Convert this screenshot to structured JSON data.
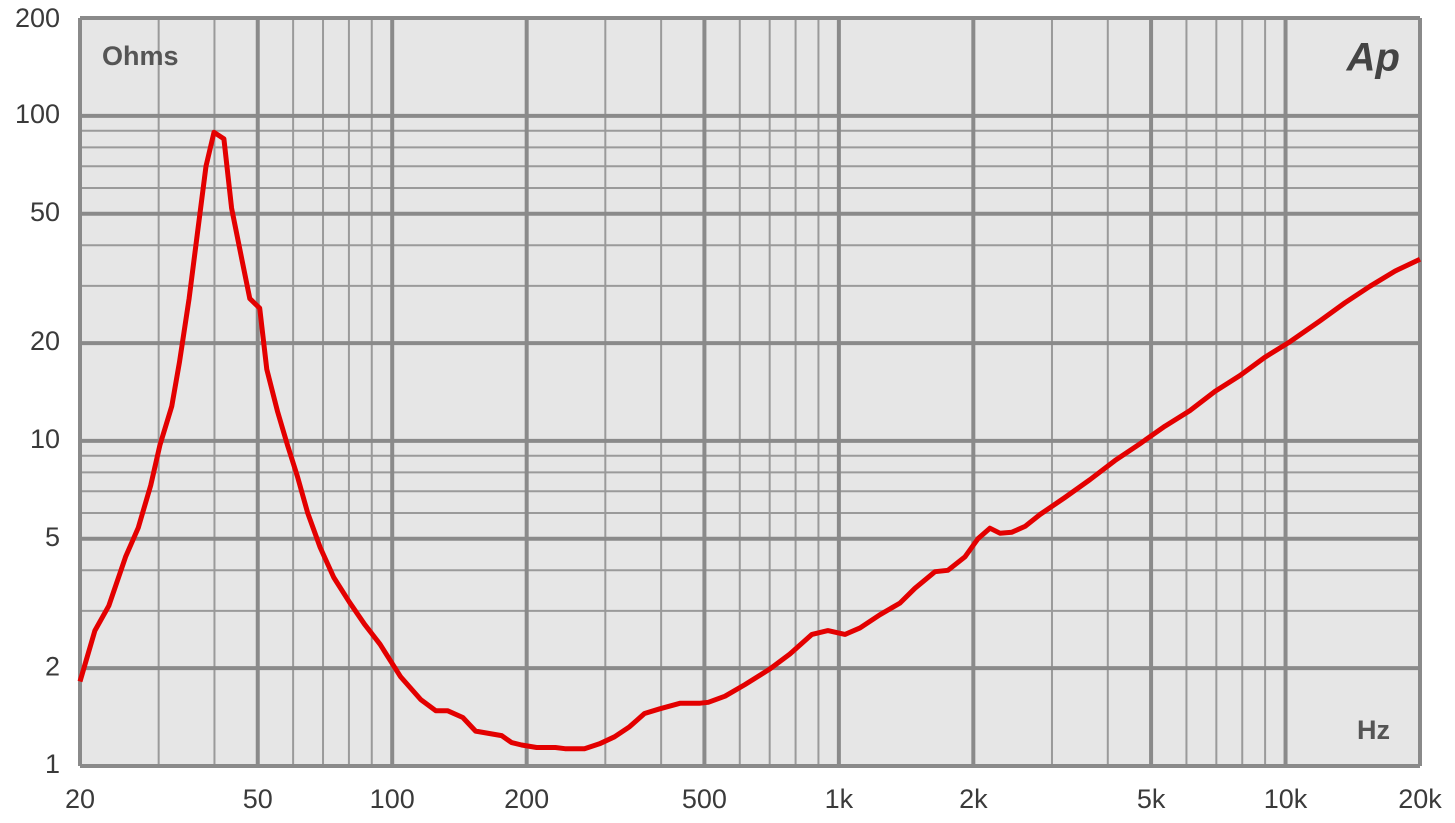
{
  "chart_data": {
    "type": "line",
    "y_label": "Ohms",
    "x_label": "Hz",
    "logo": "Ap",
    "x": [
      20,
      21.6,
      23.2,
      25.3,
      27.0,
      28.8,
      30.2,
      32.1,
      33.4,
      35.1,
      36.6,
      38.3,
      39.9,
      42.0,
      43.7,
      46.1,
      48.0,
      50.5,
      52.4,
      55.4,
      58.3,
      61.3,
      64.7,
      69.0,
      74.0,
      80.1,
      86.7,
      93.9,
      104.5,
      115.9,
      125.2,
      133,
      143.9,
      153.7,
      175.8,
      185.1,
      194.8,
      210.5,
      231.9,
      243.7,
      269.4,
      291.2,
      314.5,
      339.9,
      367.2,
      397.2,
      441.5,
      489,
      510,
      556,
      616,
      701,
      777,
      870,
      945,
      1032,
      1115,
      1236,
      1370,
      1480,
      1641,
      1754,
      1916,
      2048,
      2178,
      2294,
      2440,
      2610,
      2820,
      3207,
      3648,
      4150,
      4721,
      5370,
      6109,
      6950,
      7906,
      8994,
      10232,
      11940,
      13580,
      15450,
      17580,
      20000
    ],
    "values": [
      1.82,
      2.61,
      3.11,
      4.4,
      5.4,
      7.3,
      9.7,
      12.8,
      17.5,
      27.4,
      43,
      70,
      89,
      85,
      52,
      36,
      27.4,
      25.6,
      16.6,
      12.3,
      9.7,
      7.8,
      6.0,
      4.7,
      3.8,
      3.2,
      2.73,
      2.37,
      1.88,
      1.6,
      1.48,
      1.48,
      1.41,
      1.28,
      1.24,
      1.18,
      1.16,
      1.14,
      1.14,
      1.13,
      1.13,
      1.17,
      1.23,
      1.32,
      1.45,
      1.5,
      1.56,
      1.56,
      1.57,
      1.64,
      1.78,
      1.99,
      2.21,
      2.54,
      2.61,
      2.54,
      2.66,
      2.92,
      3.17,
      3.52,
      3.96,
      4.0,
      4.4,
      5.0,
      5.39,
      5.2,
      5.24,
      5.46,
      5.94,
      6.7,
      7.6,
      8.7,
      9.8,
      11.1,
      12.4,
      14.2,
      15.9,
      18.1,
      20.2,
      23.4,
      26.6,
      29.9,
      33.3,
      36.2
    ],
    "color": "#e30000",
    "xscale": "log",
    "yscale": "log",
    "grid": true,
    "xlim": [
      20,
      20000
    ],
    "ylim": [
      1,
      200
    ],
    "xticks": [
      20,
      50,
      100,
      200,
      500,
      {
        "value": 1000,
        "label": "1k"
      },
      {
        "value": 2000,
        "label": "2k"
      },
      {
        "value": 5000,
        "label": "5k"
      },
      {
        "value": 10000,
        "label": "10k"
      },
      {
        "value": 20000,
        "label": "20k"
      }
    ],
    "yticks": [
      1,
      2,
      5,
      10,
      20,
      50,
      100,
      200
    ],
    "x_minor_ticks": [
      30,
      40,
      60,
      70,
      80,
      90,
      300,
      400,
      600,
      700,
      800,
      900,
      3000,
      4000,
      6000,
      7000,
      8000,
      9000
    ],
    "y_minor_ticks": [
      3,
      4,
      6,
      7,
      8,
      9,
      30,
      40,
      60,
      70,
      80,
      90
    ]
  }
}
